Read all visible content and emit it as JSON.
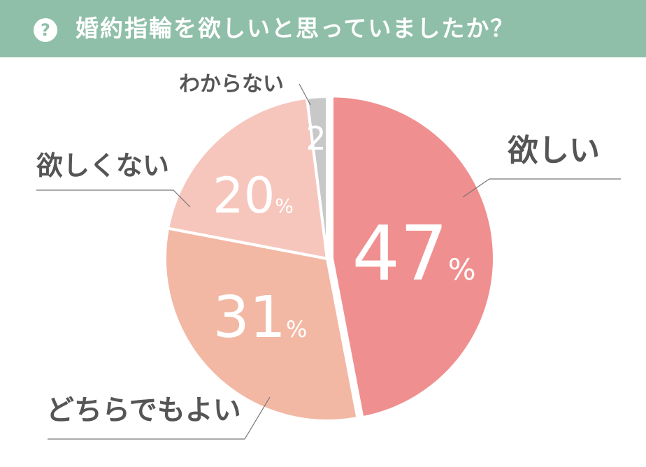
{
  "header": {
    "icon": "question-circle-icon",
    "question_mark": "?",
    "title": "婚約指輪を欲しいと思っていましたか？",
    "bg_color": "#8fbfa9"
  },
  "chart_data": {
    "type": "pie",
    "title": "婚約指輪を欲しいと思っていましたか？",
    "slices": [
      {
        "label": "欲しい",
        "value": 47,
        "display": "47",
        "unit": "%",
        "color": "#f08f8f"
      },
      {
        "label": "どちらでもよい",
        "value": 31,
        "display": "31",
        "unit": "%",
        "color": "#f2b8a4"
      },
      {
        "label": "欲しくない",
        "value": 20,
        "display": "20",
        "unit": "%",
        "color": "#f6c6bd"
      },
      {
        "label": "わからない",
        "value": 2,
        "display": "2",
        "unit": "",
        "color": "#c8c8c8"
      }
    ],
    "start": "12 o'clock",
    "direction": "clockwise",
    "legend": "callout labels"
  }
}
